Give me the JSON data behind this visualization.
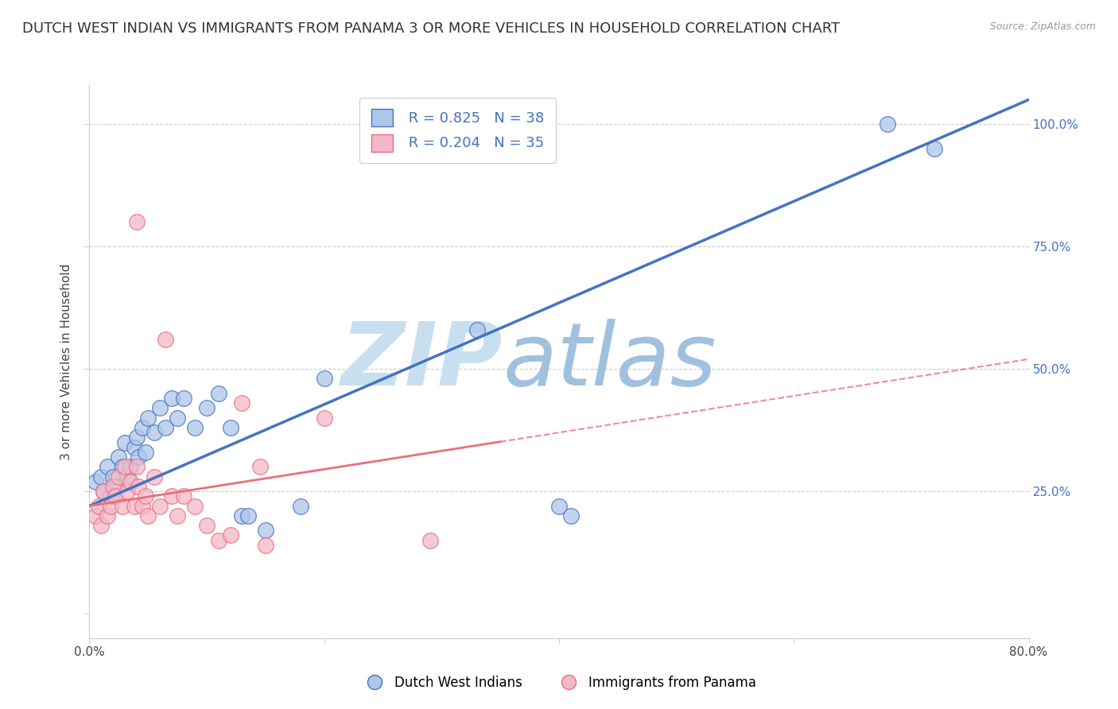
{
  "title": "DUTCH WEST INDIAN VS IMMIGRANTS FROM PANAMA 3 OR MORE VEHICLES IN HOUSEHOLD CORRELATION CHART",
  "source": "Source: ZipAtlas.com",
  "ylabel": "3 or more Vehicles in Household",
  "xlim": [
    0.0,
    0.8
  ],
  "ylim": [
    -0.05,
    1.08
  ],
  "x_ticks": [
    0.0,
    0.2,
    0.4,
    0.6,
    0.8
  ],
  "x_tick_labels": [
    "0.0%",
    "",
    "",
    "",
    "80.0%"
  ],
  "y_ticks": [
    0.0,
    0.25,
    0.5,
    0.75,
    1.0
  ],
  "y_tick_labels": [
    "",
    "25.0%",
    "50.0%",
    "75.0%",
    "100.0%"
  ],
  "blue_R": 0.825,
  "blue_N": 38,
  "pink_R": 0.204,
  "pink_N": 35,
  "blue_color": "#aec6e8",
  "pink_color": "#f4b8c8",
  "blue_line_color": "#4472c4",
  "pink_line_color": "#e8707a",
  "blue_scatter": [
    [
      0.005,
      0.27
    ],
    [
      0.01,
      0.28
    ],
    [
      0.012,
      0.25
    ],
    [
      0.015,
      0.3
    ],
    [
      0.018,
      0.24
    ],
    [
      0.02,
      0.28
    ],
    [
      0.022,
      0.26
    ],
    [
      0.025,
      0.32
    ],
    [
      0.028,
      0.3
    ],
    [
      0.03,
      0.35
    ],
    [
      0.032,
      0.28
    ],
    [
      0.035,
      0.3
    ],
    [
      0.038,
      0.34
    ],
    [
      0.04,
      0.36
    ],
    [
      0.042,
      0.32
    ],
    [
      0.045,
      0.38
    ],
    [
      0.048,
      0.33
    ],
    [
      0.05,
      0.4
    ],
    [
      0.055,
      0.37
    ],
    [
      0.06,
      0.42
    ],
    [
      0.065,
      0.38
    ],
    [
      0.07,
      0.44
    ],
    [
      0.075,
      0.4
    ],
    [
      0.08,
      0.44
    ],
    [
      0.09,
      0.38
    ],
    [
      0.1,
      0.42
    ],
    [
      0.11,
      0.45
    ],
    [
      0.12,
      0.38
    ],
    [
      0.13,
      0.2
    ],
    [
      0.135,
      0.2
    ],
    [
      0.15,
      0.17
    ],
    [
      0.18,
      0.22
    ],
    [
      0.2,
      0.48
    ],
    [
      0.33,
      0.58
    ],
    [
      0.4,
      0.22
    ],
    [
      0.41,
      0.2
    ],
    [
      0.68,
      1.0
    ],
    [
      0.72,
      0.95
    ]
  ],
  "pink_scatter": [
    [
      0.005,
      0.2
    ],
    [
      0.008,
      0.22
    ],
    [
      0.01,
      0.18
    ],
    [
      0.012,
      0.25
    ],
    [
      0.015,
      0.2
    ],
    [
      0.018,
      0.22
    ],
    [
      0.02,
      0.26
    ],
    [
      0.022,
      0.24
    ],
    [
      0.025,
      0.28
    ],
    [
      0.028,
      0.22
    ],
    [
      0.03,
      0.3
    ],
    [
      0.032,
      0.25
    ],
    [
      0.035,
      0.27
    ],
    [
      0.038,
      0.22
    ],
    [
      0.04,
      0.3
    ],
    [
      0.042,
      0.26
    ],
    [
      0.045,
      0.22
    ],
    [
      0.048,
      0.24
    ],
    [
      0.05,
      0.2
    ],
    [
      0.055,
      0.28
    ],
    [
      0.06,
      0.22
    ],
    [
      0.065,
      0.56
    ],
    [
      0.07,
      0.24
    ],
    [
      0.075,
      0.2
    ],
    [
      0.08,
      0.24
    ],
    [
      0.09,
      0.22
    ],
    [
      0.1,
      0.18
    ],
    [
      0.11,
      0.15
    ],
    [
      0.12,
      0.16
    ],
    [
      0.13,
      0.43
    ],
    [
      0.145,
      0.3
    ],
    [
      0.15,
      0.14
    ],
    [
      0.2,
      0.4
    ],
    [
      0.29,
      0.15
    ],
    [
      0.04,
      0.8
    ]
  ],
  "blue_trend": [
    0.0,
    0.8
  ],
  "blue_trend_y": [
    0.22,
    1.05
  ],
  "pink_trend": [
    0.0,
    0.8
  ],
  "pink_trend_y": [
    0.22,
    0.52
  ],
  "grid_color": "#cccccc",
  "background_color": "#ffffff",
  "watermark_text1": "ZIP",
  "watermark_text2": "atlas",
  "watermark_color1": "#c8dff0",
  "watermark_color2": "#a0c0e0",
  "title_fontsize": 13,
  "axis_label_fontsize": 11,
  "tick_fontsize": 11,
  "legend_fontsize": 13
}
